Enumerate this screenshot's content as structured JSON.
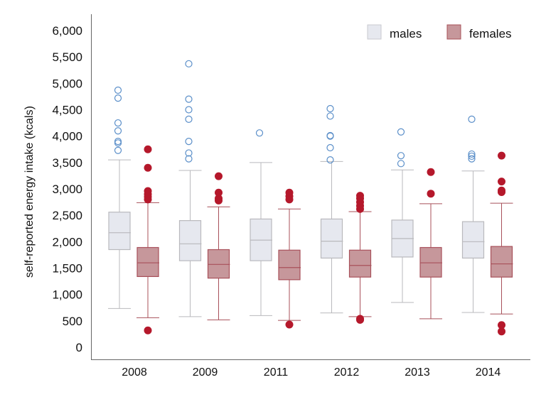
{
  "chart_data": {
    "type": "boxplot",
    "title": "",
    "xlabel": "",
    "ylabel": "self-reported energy intake (kcals)",
    "ylim": [
      0,
      6000
    ],
    "yticks": [
      0,
      500,
      1000,
      1500,
      2000,
      2500,
      3000,
      3500,
      4000,
      4500,
      5000,
      5500,
      6000
    ],
    "ytick_labels": [
      "0",
      "500",
      "1,000",
      "1,500",
      "2,000",
      "2,500",
      "3,000",
      "3,500",
      "4,000",
      "4,500",
      "5,000",
      "5,500",
      "6,000"
    ],
    "grid": false,
    "legend_position": "top-right",
    "categories": [
      "2008",
      "2009",
      "2011",
      "2012",
      "2013",
      "2014"
    ],
    "series": [
      {
        "name": "males",
        "color": "#e6e8ef",
        "stroke": "#b9b9bd",
        "outlier_color": "#5b8fc9",
        "outlier_style": "open",
        "boxes": [
          {
            "whisker_low": 735,
            "q1": 1850,
            "median": 2170,
            "q3": 2560,
            "whisker_high": 3550,
            "outliers": [
              3730,
              3870,
              3900,
              4100,
              4250,
              4720,
              4870
            ]
          },
          {
            "whisker_low": 580,
            "q1": 1640,
            "median": 1960,
            "q3": 2400,
            "whisker_high": 3350,
            "outliers": [
              3570,
              3680,
              3900,
              4320,
              4500,
              4700,
              5370
            ]
          },
          {
            "whisker_low": 600,
            "q1": 1640,
            "median": 2030,
            "q3": 2430,
            "whisker_high": 3500,
            "outliers": [
              4060
            ]
          },
          {
            "whisker_low": 650,
            "q1": 1690,
            "median": 2010,
            "q3": 2430,
            "whisker_high": 3520,
            "outliers": [
              3550,
              3780,
              4000,
              4010,
              4380,
              4520
            ]
          },
          {
            "whisker_low": 850,
            "q1": 1710,
            "median": 2060,
            "q3": 2410,
            "whisker_high": 3360,
            "outliers": [
              3480,
              3630,
              4080
            ]
          },
          {
            "whisker_low": 660,
            "q1": 1690,
            "median": 2000,
            "q3": 2380,
            "whisker_high": 3340,
            "outliers": [
              3570,
              3620,
              3660,
              4320
            ]
          }
        ]
      },
      {
        "name": "females",
        "color": "#c6979b",
        "stroke": "#a8505a",
        "outlier_color": "#b5182b",
        "outlier_style": "filled",
        "boxes": [
          {
            "whisker_low": 560,
            "q1": 1340,
            "median": 1600,
            "q3": 1890,
            "whisker_high": 2740,
            "outliers": [
              320,
              2800,
              2850,
              2900,
              2960,
              3400,
              3750
            ]
          },
          {
            "whisker_low": 520,
            "q1": 1310,
            "median": 1570,
            "q3": 1850,
            "whisker_high": 2660,
            "outliers": [
              2780,
              2820,
              2930,
              3240
            ]
          },
          {
            "whisker_low": 510,
            "q1": 1280,
            "median": 1510,
            "q3": 1840,
            "whisker_high": 2620,
            "outliers": [
              430,
              2800,
              2860,
              2930
            ]
          },
          {
            "whisker_low": 580,
            "q1": 1330,
            "median": 1550,
            "q3": 1840,
            "whisker_high": 2570,
            "outliers": [
              520,
              540,
              2620,
              2680,
              2750,
              2820,
              2870
            ]
          },
          {
            "whisker_low": 540,
            "q1": 1330,
            "median": 1600,
            "q3": 1890,
            "whisker_high": 2720,
            "outliers": [
              2910,
              3320
            ]
          },
          {
            "whisker_low": 630,
            "q1": 1330,
            "median": 1580,
            "q3": 1910,
            "whisker_high": 2730,
            "outliers": [
              300,
              420,
              2940,
              2970,
              3140,
              3630
            ]
          }
        ]
      }
    ]
  }
}
